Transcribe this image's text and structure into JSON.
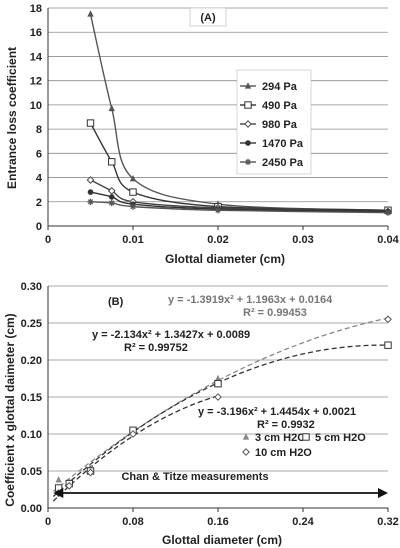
{
  "chart_data": [
    {
      "type": "line",
      "panel_label": "(A)",
      "xlabel": "Glottal diameter (cm)",
      "ylabel": "Entrance loss coefficient",
      "xlim": [
        0,
        0.04
      ],
      "ylim": [
        0,
        18
      ],
      "xticks": [
        "0",
        "0.01",
        "0.02",
        "0.03",
        "0.04"
      ],
      "yticks": [
        "0",
        "2",
        "4",
        "6",
        "8",
        "10",
        "12",
        "14",
        "16",
        "18"
      ],
      "grid": "horizontal",
      "legend_position": "right",
      "series": [
        {
          "name": "294 Pa",
          "marker": "triangle",
          "color": "#555555",
          "x": [
            0.005,
            0.0075,
            0.01,
            0.02,
            0.04
          ],
          "y": [
            17.5,
            9.7,
            3.9,
            1.8,
            1.3
          ]
        },
        {
          "name": "490 Pa",
          "marker": "square-open",
          "color": "#333333",
          "x": [
            0.005,
            0.0075,
            0.01,
            0.02,
            0.04
          ],
          "y": [
            8.5,
            5.3,
            2.8,
            1.6,
            1.3
          ]
        },
        {
          "name": "980 Pa",
          "marker": "diamond-open",
          "color": "#444444",
          "x": [
            0.005,
            0.0075,
            0.01,
            0.02,
            0.04
          ],
          "y": [
            3.8,
            2.9,
            2.0,
            1.5,
            1.2
          ]
        },
        {
          "name": "1470 Pa",
          "marker": "circle",
          "color": "#333333",
          "x": [
            0.005,
            0.0075,
            0.01,
            0.02,
            0.04
          ],
          "y": [
            2.8,
            2.4,
            1.8,
            1.4,
            1.2
          ]
        },
        {
          "name": "2450 Pa",
          "marker": "star",
          "color": "#555555",
          "x": [
            0.005,
            0.0075,
            0.01,
            0.02,
            0.04
          ],
          "y": [
            2.0,
            1.9,
            1.6,
            1.3,
            1.1
          ]
        }
      ]
    },
    {
      "type": "scatter",
      "panel_label": "(B)",
      "xlabel": "Glottal diameter (cm)",
      "ylabel": "Coefficient x glottal daimeter (cm)",
      "xlim": [
        0,
        0.32
      ],
      "ylim": [
        0,
        0.3
      ],
      "xticks": [
        "0",
        "0.08",
        "0.16",
        "0.24",
        "0.32"
      ],
      "yticks": [
        "0.00",
        "0.05",
        "0.10",
        "0.15",
        "0.20",
        "0.25",
        "0.30"
      ],
      "grid": "horizontal",
      "legend_position": "lower-right",
      "series": [
        {
          "name": "3 cm H2O",
          "marker": "triangle",
          "color": "#888888",
          "x": [
            0.01,
            0.02,
            0.04,
            0.08,
            0.16
          ],
          "y": [
            0.038,
            0.035,
            0.055,
            0.105,
            0.175
          ]
        },
        {
          "name": "5 cm H2O",
          "marker": "square-open",
          "color": "#333333",
          "x": [
            0.01,
            0.02,
            0.04,
            0.08,
            0.16,
            0.32
          ],
          "y": [
            0.027,
            0.033,
            0.05,
            0.105,
            0.168,
            0.22
          ]
        },
        {
          "name": "10 cm H2O",
          "marker": "diamond-open",
          "color": "#555555",
          "x": [
            0.01,
            0.02,
            0.04,
            0.08,
            0.16,
            0.32
          ],
          "y": [
            0.02,
            0.03,
            0.048,
            0.1,
            0.15,
            0.255
          ]
        }
      ],
      "trendlines": [
        {
          "a": -1.3919,
          "b": 1.1963,
          "c": 0.0164,
          "x_range": [
            0.005,
            0.32
          ],
          "color": "#888888"
        },
        {
          "a": -2.134,
          "b": 1.3427,
          "c": 0.0089,
          "x_range": [
            0.005,
            0.32
          ],
          "color": "#333333"
        },
        {
          "a": -3.196,
          "b": 1.4454,
          "c": 0.0021,
          "x_range": [
            0.005,
            0.16
          ],
          "color": "#333333"
        }
      ],
      "equations": [
        {
          "line1": "y = -1.3919x² + 1.1963x + 0.0164",
          "line2": "R² = 0.99453",
          "color": "#777777"
        },
        {
          "line1": "y = -2.134x² + 1.3427x + 0.0089",
          "line2": "R² = 0.99752",
          "color": "#222222"
        },
        {
          "line1": "y = -3.196x² + 1.4454x + 0.0021",
          "line2": "R² = 0.9932",
          "color": "#222222"
        }
      ],
      "annotation": "Chan & Titze measurements",
      "annotation_range": [
        0.005,
        0.32
      ]
    }
  ]
}
